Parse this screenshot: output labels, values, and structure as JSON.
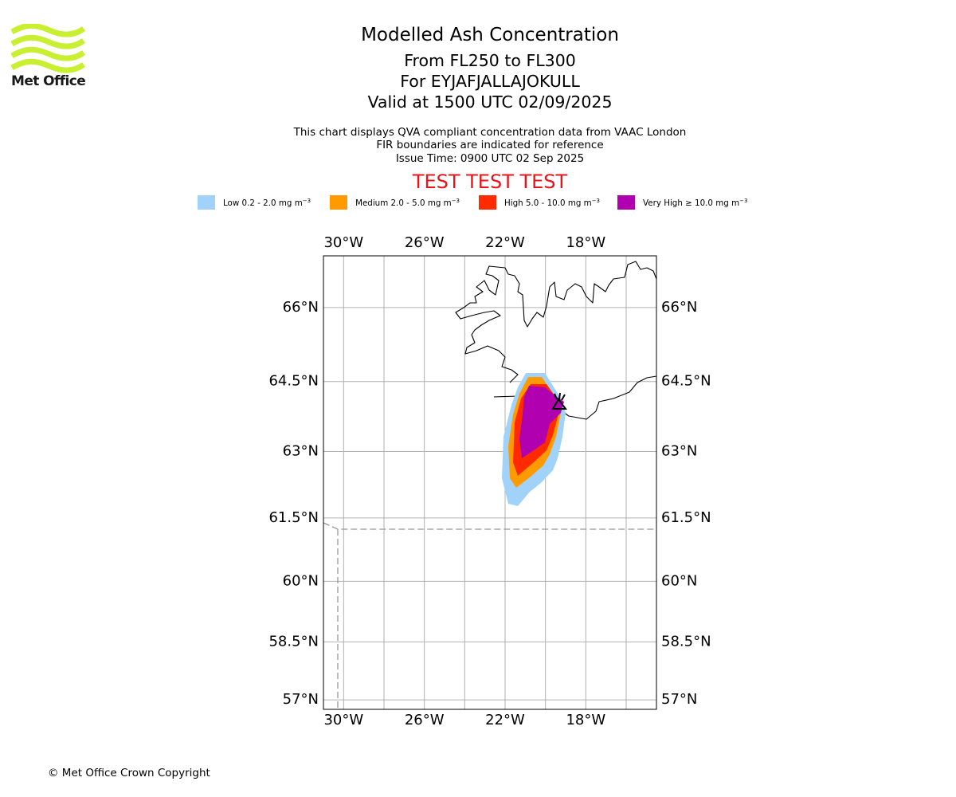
{
  "logo": {
    "text": "Met Office",
    "color": "#c8f030"
  },
  "header": {
    "title": "Modelled Ash Concentration",
    "level_range": "From FL250 to FL300",
    "volcano": "For EYJAFJALLAJOKULL",
    "valid_time": "Valid at 1500 UTC 02/09/2025"
  },
  "description": {
    "line1": "This chart displays QVA compliant concentration data from VAAC London",
    "line2": "FIR boundaries are indicated for reference",
    "issue_time": "Issue Time: 0900 UTC 02 Sep 2025"
  },
  "test_banner": {
    "text": "TEST TEST TEST",
    "color": "#e8141a"
  },
  "legend": {
    "unit_base": "mg m",
    "unit_exponent": "−3",
    "items": [
      {
        "name": "low",
        "label": "Low 0.2 - 2.0",
        "color": "#a0d2fa"
      },
      {
        "name": "medium",
        "label": "Medium 2.0 - 5.0",
        "color": "#ff9a00"
      },
      {
        "name": "high",
        "label": "High 5.0 - 10.0",
        "color": "#ff2a00"
      },
      {
        "name": "very-high",
        "label": "Very High ≥ 10.0",
        "color": "#b000b0"
      }
    ]
  },
  "map": {
    "lon_range": [
      -31,
      -14.5
    ],
    "lat_range": [
      56.75,
      67
    ],
    "lon_ticks": [
      -30,
      -26,
      -22,
      -18
    ],
    "lon_tick_labels": [
      "30°W",
      "26°W",
      "22°W",
      "18°W"
    ],
    "lat_ticks": [
      57,
      58.5,
      60,
      61.5,
      63,
      64.5,
      66
    ],
    "lat_tick_labels": [
      "57°N",
      "58.5°N",
      "60°N",
      "61.5°N",
      "63°N",
      "64.5°N",
      "66°N"
    ],
    "grid": true,
    "volcano_icon": "volcano-icon"
  },
  "footer": {
    "copyright": "© Met Office Crown Copyright"
  }
}
